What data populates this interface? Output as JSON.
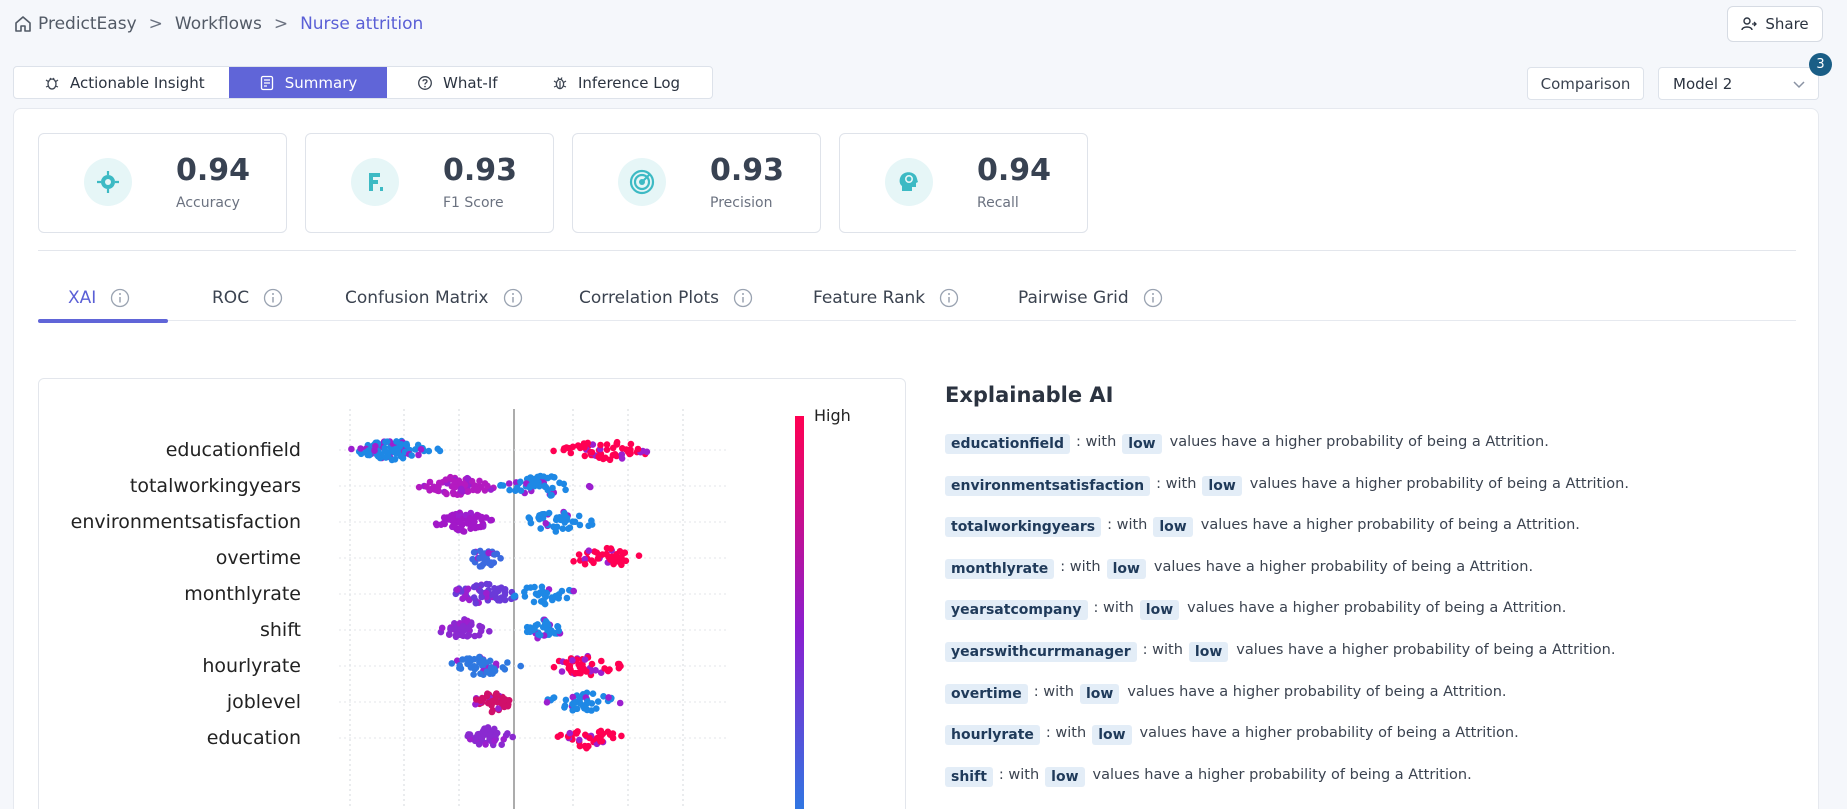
{
  "breadcrumb": {
    "items": [
      "PredictEasy",
      "Workflows",
      "Nurse attrition"
    ],
    "separator": ">"
  },
  "share": {
    "label": "Share"
  },
  "tabs": [
    {
      "label": "Actionable Insight",
      "icon": "bug-icon"
    },
    {
      "label": "Summary",
      "icon": "report-icon",
      "active": true
    },
    {
      "label": "What-If",
      "icon": "help-circle-icon"
    },
    {
      "label": "Inference Log",
      "icon": "bug-log-icon"
    }
  ],
  "comparison": {
    "label": "Comparison"
  },
  "model_select": {
    "value": "Model 2",
    "badge": "3"
  },
  "metrics": [
    {
      "value": "0.94",
      "label": "Accuracy",
      "icon": "target-icon"
    },
    {
      "value": "0.93",
      "label": "F1 Score",
      "icon": "f1-icon"
    },
    {
      "value": "0.93",
      "label": "Precision",
      "icon": "precision-icon"
    },
    {
      "value": "0.94",
      "label": "Recall",
      "icon": "head-recall-icon"
    }
  ],
  "analysis_tabs": [
    {
      "label": "XAI",
      "active": true
    },
    {
      "label": "ROC"
    },
    {
      "label": "Confusion Matrix"
    },
    {
      "label": "Correlation Plots"
    },
    {
      "label": "Feature Rank"
    },
    {
      "label": "Pairwise Grid"
    }
  ],
  "colors": {
    "accent": "#6065d8",
    "low": "#1e88e5",
    "high": "#ff0052",
    "badge": "#1a5e86"
  },
  "chart_data": {
    "type": "scatter",
    "subtype": "beeswarm",
    "colorbar_label": "High",
    "features": [
      "educationfield",
      "totalworkingyears",
      "environmentsatisfaction",
      "overtime",
      "monthlyrate",
      "shift",
      "hourlyrate",
      "joblevel",
      "education"
    ],
    "x_range": [
      -1,
      1
    ]
  },
  "xai": {
    "title": "Explainable AI",
    "with_text": ": with",
    "suffix": "values have a higher probability of being a Attrition.",
    "items": [
      {
        "feature": "educationfield",
        "level": "low"
      },
      {
        "feature": "environmentsatisfaction",
        "level": "low"
      },
      {
        "feature": "totalworkingyears",
        "level": "low"
      },
      {
        "feature": "monthlyrate",
        "level": "low"
      },
      {
        "feature": "yearsatcompany",
        "level": "low"
      },
      {
        "feature": "yearswithcurrmanager",
        "level": "low"
      },
      {
        "feature": "overtime",
        "level": "low"
      },
      {
        "feature": "hourlyrate",
        "level": "low"
      },
      {
        "feature": "shift",
        "level": "low"
      }
    ]
  }
}
